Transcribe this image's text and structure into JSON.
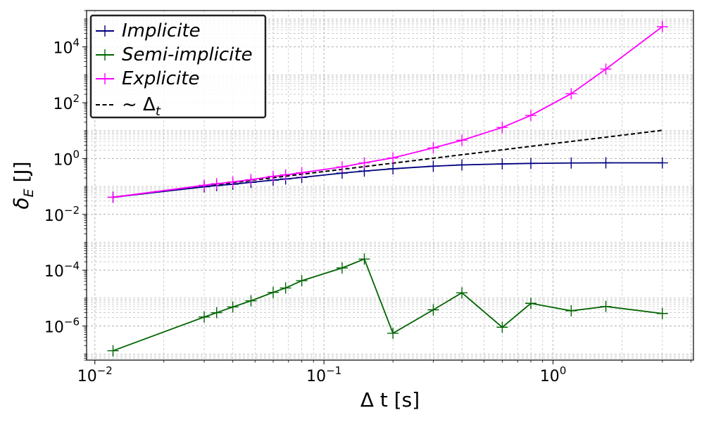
{
  "chart_data": {
    "type": "line",
    "xscale": "log",
    "yscale": "log",
    "xlim": [
      0.0092,
      4.1
    ],
    "ylim": [
      6e-08,
      200000.0
    ],
    "grid": "both major and minor, dashed",
    "legend_position": "top-left",
    "xlabel": "Δ t [s]",
    "ylabel": {
      "base": "δ",
      "sub": "E",
      "unit": " [J]"
    },
    "x_ticks": [
      {
        "value": 0.01,
        "base": "10",
        "exp": "−2"
      },
      {
        "value": 0.1,
        "base": "10",
        "exp": "−1"
      },
      {
        "value": 1,
        "base": "10",
        "exp": "0"
      }
    ],
    "y_ticks": [
      {
        "value": 1e-06,
        "base": "10",
        "exp": "−6"
      },
      {
        "value": 0.0001,
        "base": "10",
        "exp": "−4"
      },
      {
        "value": 0.01,
        "base": "10",
        "exp": "−2"
      },
      {
        "value": 1,
        "base": "10",
        "exp": "0"
      },
      {
        "value": 100,
        "base": "10",
        "exp": "2"
      },
      {
        "value": 10000,
        "base": "10",
        "exp": "4"
      }
    ],
    "series": [
      {
        "name": "Implicite",
        "color": "#00007f",
        "marker": "+",
        "linestyle": "solid",
        "x": [
          0.012,
          0.03,
          0.034,
          0.04,
          0.048,
          0.06,
          0.068,
          0.08,
          0.12,
          0.15,
          0.2,
          0.3,
          0.4,
          0.6,
          0.8,
          1.2,
          1.7,
          3.0
        ],
        "y": [
          0.041,
          0.097,
          0.108,
          0.12,
          0.14,
          0.168,
          0.185,
          0.21,
          0.3,
          0.355,
          0.43,
          0.53,
          0.59,
          0.64,
          0.67,
          0.69,
          0.7,
          0.7
        ]
      },
      {
        "name": "Semi-implicite",
        "color": "#006400",
        "marker": "+",
        "linestyle": "solid",
        "x": [
          0.012,
          0.03,
          0.034,
          0.04,
          0.048,
          0.06,
          0.068,
          0.08,
          0.12,
          0.15,
          0.2,
          0.3,
          0.4,
          0.6,
          0.8,
          1.2,
          1.7,
          3.0
        ],
        "y": [
          1.3e-07,
          2.1e-06,
          3e-06,
          4.8e-06,
          8e-06,
          1.6e-05,
          2.3e-05,
          4.2e-05,
          0.00012,
          0.00025,
          5.5e-07,
          3.8e-06,
          1.55e-05,
          9e-07,
          6.5e-06,
          3.5e-06,
          5e-06,
          2.8e-06
        ]
      },
      {
        "name": "Explicite",
        "color": "#ff00ff",
        "marker": "+",
        "linestyle": "solid",
        "x": [
          0.012,
          0.03,
          0.034,
          0.04,
          0.048,
          0.06,
          0.068,
          0.08,
          0.12,
          0.15,
          0.2,
          0.3,
          0.4,
          0.6,
          0.8,
          1.2,
          1.7,
          3.0
        ],
        "y": [
          0.041,
          0.11,
          0.125,
          0.145,
          0.175,
          0.23,
          0.26,
          0.31,
          0.5,
          0.7,
          1.05,
          2.4,
          4.5,
          13,
          35,
          210,
          1600,
          53000
        ]
      },
      {
        "name": "~ Δ",
        "name_sub": "t",
        "color": "#000000",
        "marker": "none",
        "linestyle": "dashed",
        "x": [
          0.012,
          3.0
        ],
        "y": [
          0.041,
          10.25
        ]
      }
    ]
  }
}
